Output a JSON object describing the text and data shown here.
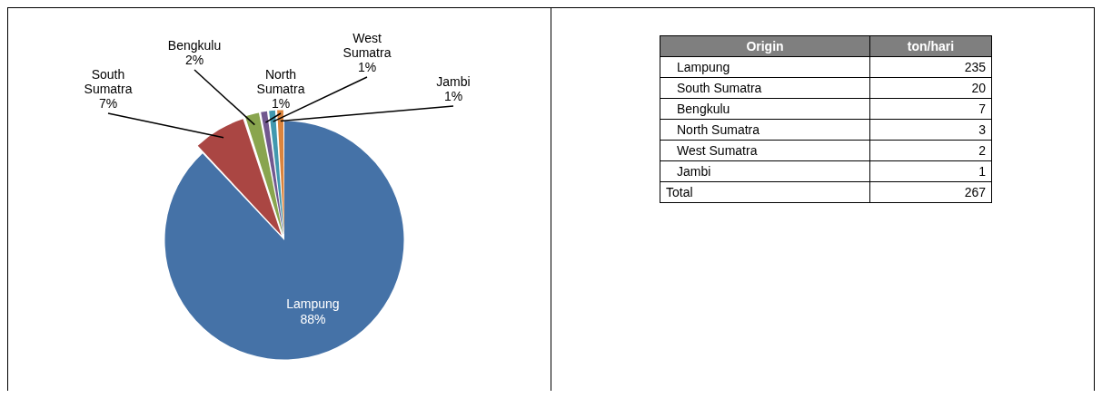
{
  "chart_data": [
    {
      "type": "pie",
      "categories": [
        "Lampung",
        "South Sumatra",
        "Bengkulu",
        "North Sumatra",
        "West Sumatra",
        "Jambi"
      ],
      "values": [
        88,
        7,
        2,
        1,
        1,
        1
      ],
      "colors": [
        "#4572a7",
        "#aa4643",
        "#89a54e",
        "#71588f",
        "#4198af",
        "#db843d"
      ],
      "value_labels": [
        "88%",
        "7%",
        "2%",
        "1%",
        "1%",
        "1%"
      ],
      "legend": false
    },
    {
      "type": "other",
      "categories": [
        "Lampung",
        "South Sumatra",
        "Bengkulu",
        "North Sumatra",
        "West Sumatra",
        "Jambi"
      ],
      "values": [
        235,
        20,
        7,
        3,
        2,
        1
      ],
      "data_labels": true,
      "totals": [
        "267"
      ],
      "annotations": [
        "Origin",
        "ton/hari",
        "Total"
      ]
    }
  ]
}
